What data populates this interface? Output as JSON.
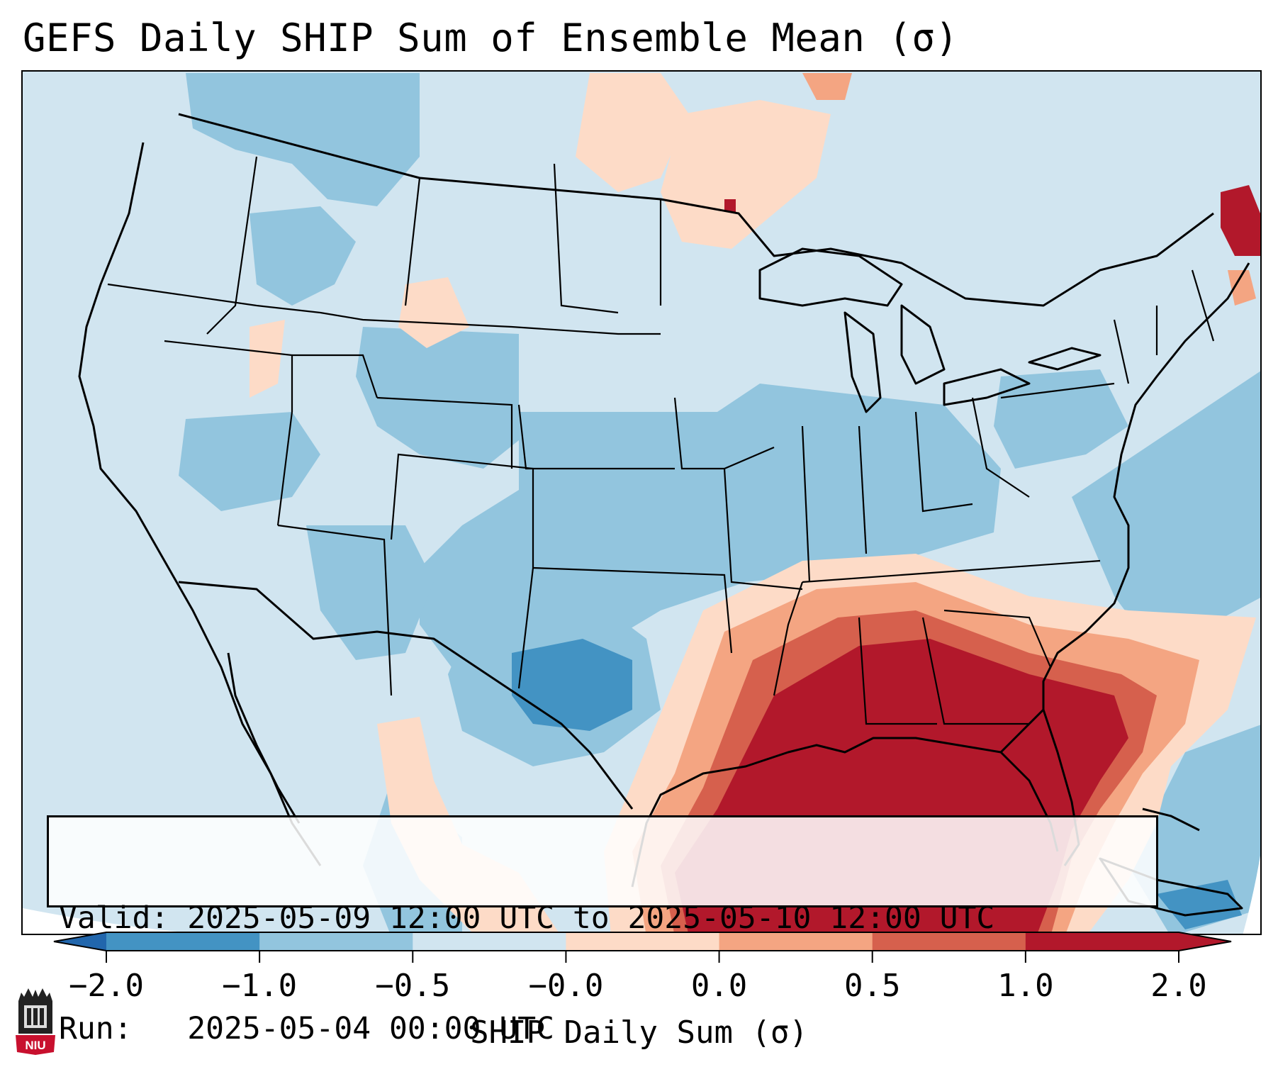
{
  "title": "GEFS Daily SHIP Sum of Ensemble Mean (σ)",
  "info": {
    "valid_line": "Valid: 2025-05-09 12:00 UTC to 2025-05-10 12:00 UTC",
    "run_line": "Run:   2025-05-04 00:00 UTC"
  },
  "colorbar": {
    "label": "SHIP Daily Sum (σ)",
    "ticks": [
      "−2.0",
      "−1.0",
      "−0.5",
      "−0.0",
      "0.0",
      "0.5",
      "1.0",
      "2.0"
    ],
    "colors": [
      "#4393c3",
      "#92c5de",
      "#d1e5f0",
      "#fddbc7",
      "#f4a582",
      "#d6604d",
      "#b2182b"
    ],
    "extend_low_color": "#2166ac",
    "extend_high_color": "#b2182b"
  },
  "map": {
    "projection": "Lambert conformal, CONUS",
    "background_color": "#d1e5f0",
    "outside_color": "#ffffff",
    "line_color": "#000000"
  },
  "logo": {
    "text": "NIU",
    "color": "#c8102e"
  }
}
